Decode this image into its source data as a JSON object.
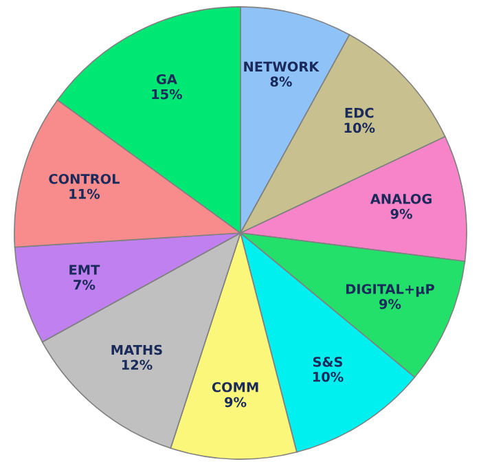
{
  "chart_data": {
    "type": "pie",
    "categories": [
      "NETWORK",
      "EDC",
      "ANALOG",
      "DIGITAL+µP",
      "S&S",
      "COMM",
      "MATHS",
      "EMT",
      "CONTROL",
      "GA"
    ],
    "values": [
      8,
      10,
      9,
      9,
      10,
      9,
      12,
      7,
      11,
      15
    ],
    "colors": [
      "#8fc3f7",
      "#c8c08e",
      "#f784c8",
      "#22e06a",
      "#00f0f0",
      "#fbf77a",
      "#c0c0c0",
      "#c080f0",
      "#f88c8c",
      "#00e874"
    ],
    "value_labels": [
      "8%",
      "10%",
      "9%",
      "9%",
      "10%",
      "9%",
      "12%",
      "7%",
      "11%",
      "15%"
    ],
    "legend": false
  }
}
